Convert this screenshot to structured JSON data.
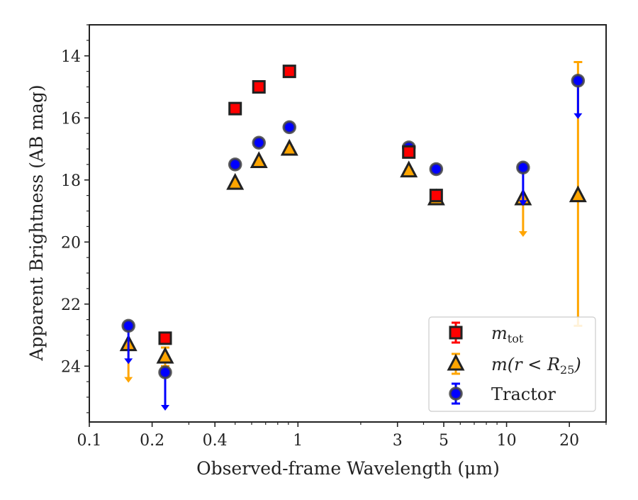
{
  "chart_data": {
    "type": "scatter",
    "x_scale": "log",
    "y_inverted": true,
    "xlabel": "Observed-frame Wavelength (μm)",
    "ylabel": "Apparent Brightness (AB mag)",
    "xlim": [
      0.1,
      30
    ],
    "ylim": [
      25.8,
      13.0
    ],
    "x_ticks": [
      {
        "value": 0.1,
        "label": "0.1"
      },
      {
        "value": 0.2,
        "label": "0.2"
      },
      {
        "value": 0.4,
        "label": "0.4"
      },
      {
        "value": 1,
        "label": "1"
      },
      {
        "value": 3,
        "label": "3"
      },
      {
        "value": 5,
        "label": "5"
      },
      {
        "value": 10,
        "label": "10"
      },
      {
        "value": 20,
        "label": "20"
      }
    ],
    "y_ticks": [
      {
        "value": 14,
        "label": "14"
      },
      {
        "value": 16,
        "label": "16"
      },
      {
        "value": 18,
        "label": "18"
      },
      {
        "value": 20,
        "label": "20"
      },
      {
        "value": 22,
        "label": "22"
      },
      {
        "value": 24,
        "label": "24"
      }
    ],
    "grid": false,
    "legend_position": "bottom-right",
    "series": [
      {
        "key": "mtot",
        "marker": "square",
        "color": "#ff0000",
        "points": [
          {
            "x": 0.231,
            "y": 23.1,
            "err": 0.05
          },
          {
            "x": 0.5,
            "y": 15.7,
            "err": 0.04
          },
          {
            "x": 0.65,
            "y": 15.0,
            "err": 0.04
          },
          {
            "x": 0.91,
            "y": 14.5,
            "err": 0.04
          },
          {
            "x": 3.4,
            "y": 17.1,
            "err": 0.04
          },
          {
            "x": 4.6,
            "y": 18.5,
            "err": 0.05
          }
        ]
      },
      {
        "key": "mr25",
        "marker": "triangle",
        "color": "#ffa500",
        "points": [
          {
            "x": 0.154,
            "y": 23.3,
            "upper_limit": true
          },
          {
            "x": 0.231,
            "y": 23.7,
            "err": 0.3
          },
          {
            "x": 0.5,
            "y": 18.1,
            "err": 0.05
          },
          {
            "x": 0.65,
            "y": 17.4,
            "err": 0.05
          },
          {
            "x": 0.91,
            "y": 17.0,
            "err": 0.05
          },
          {
            "x": 3.4,
            "y": 17.7,
            "err": 0.05
          },
          {
            "x": 4.6,
            "y": 18.6,
            "err": 0.05
          },
          {
            "x": 12.0,
            "y": 18.6,
            "upper_limit": true
          },
          {
            "x": 22.0,
            "y": 18.5,
            "err_low": 14.2,
            "err_high": 22.7
          }
        ]
      },
      {
        "key": "tractor",
        "marker": "circle",
        "color": "#0000ff",
        "points": [
          {
            "x": 0.154,
            "y": 22.7,
            "upper_limit": true
          },
          {
            "x": 0.231,
            "y": 24.2,
            "upper_limit": true
          },
          {
            "x": 0.5,
            "y": 17.5,
            "err": 0.04
          },
          {
            "x": 0.65,
            "y": 16.8,
            "err": 0.04
          },
          {
            "x": 0.91,
            "y": 16.3,
            "err": 0.04
          },
          {
            "x": 3.4,
            "y": 16.95,
            "err": 0.04
          },
          {
            "x": 4.6,
            "y": 17.65,
            "err": 0.04
          },
          {
            "x": 12.0,
            "y": 17.6,
            "upper_limit": true
          },
          {
            "x": 22.0,
            "y": 14.8,
            "upper_limit": true
          }
        ]
      }
    ],
    "legend": {
      "entries": [
        {
          "series": "mtot",
          "main": "m",
          "sub": "tot",
          "tail": ""
        },
        {
          "series": "mr25",
          "main": "m(r < R",
          "sub": "25",
          "tail": ")"
        },
        {
          "series": "tractor",
          "main": "Tractor",
          "sub": "",
          "tail": ""
        }
      ]
    }
  }
}
